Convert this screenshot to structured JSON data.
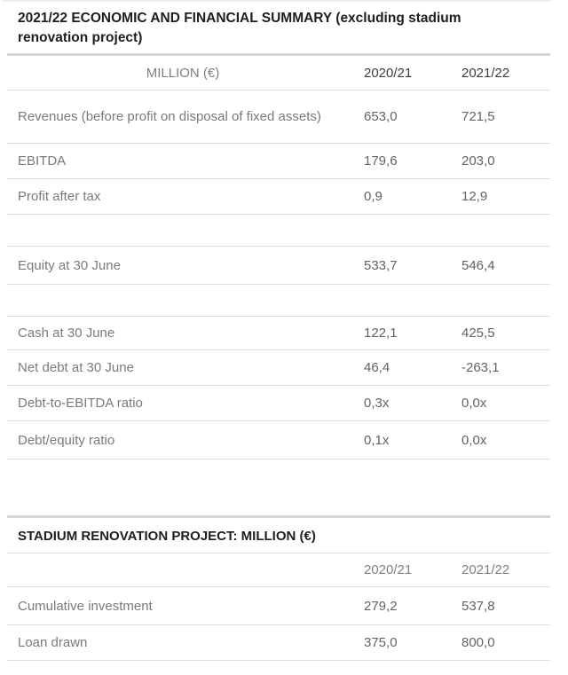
{
  "page_title": "2021/22 ECONOMIC AND FINANCIAL SUMMARY (excluding stadium renovation project)",
  "summary": {
    "header": {
      "label": "MILLION (€)",
      "y1": "2020/21",
      "y2": "2021/22"
    },
    "rows": [
      {
        "label": "Revenues (before profit on disposal of fixed assets)",
        "v1": "653,0",
        "v2": "721,5"
      },
      {
        "label": "EBITDA",
        "v1": "179,6",
        "v2": "203,0"
      },
      {
        "label": "Profit after tax",
        "v1": "0,9",
        "v2": "12,9"
      },
      {
        "label": "",
        "v1": "",
        "v2": ""
      },
      {
        "label": "Equity at 30 June",
        "v1": "533,7",
        "v2": "546,4"
      },
      {
        "label": "",
        "v1": "",
        "v2": ""
      },
      {
        "label": "Cash at 30 June",
        "v1": "122,1",
        "v2": "425,5"
      },
      {
        "label": "Net debt at 30 June",
        "v1": "46,4",
        "v2": "-263,1"
      },
      {
        "label": "Debt-to-EBITDA ratio",
        "v1": "0,3x",
        "v2": "0,0x"
      },
      {
        "label": "Debt/equity ratio",
        "v1": "0,1x",
        "v2": "0,0x"
      }
    ]
  },
  "stadium": {
    "title": "STADIUM RENOVATION PROJECT: MILLION (€)",
    "header": {
      "y1": "2020/21",
      "y2": "2021/22"
    },
    "rows": [
      {
        "label": "Cumulative investment",
        "v1": "279,2",
        "v2": "537,8"
      },
      {
        "label": "Loan drawn",
        "v1": "375,0",
        "v2": "800,0"
      }
    ]
  },
  "colors": {
    "heading_text": "#1e1e1e",
    "year_header_text": "#3d3d3d",
    "muted_header_text": "#7f7f7f",
    "row_label_text": "#7a7a7a",
    "value_text": "#636363",
    "rule": "#dcdcdc",
    "thick_rule": "#d5d5d5",
    "top_rule": "#ececec"
  }
}
